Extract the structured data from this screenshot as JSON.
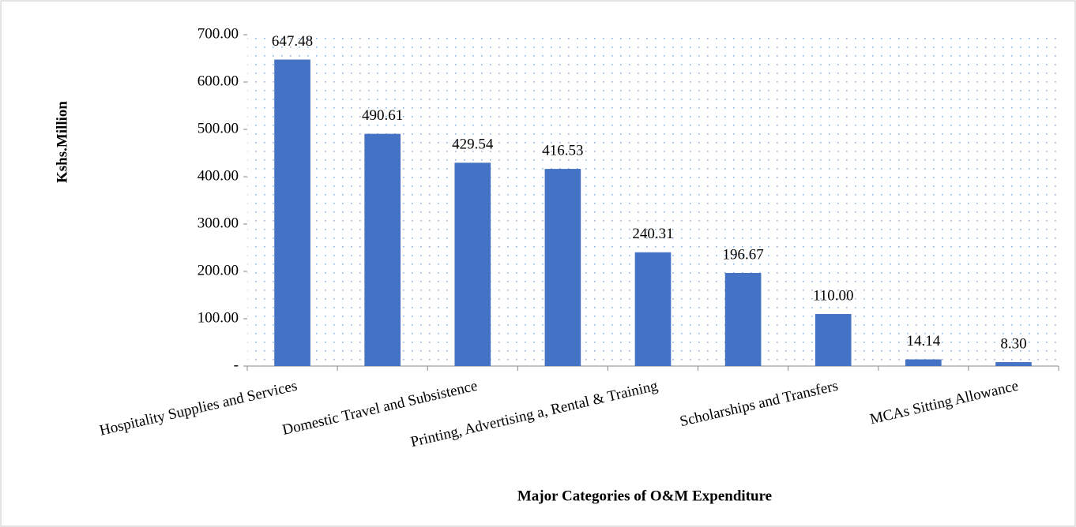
{
  "chart_data": {
    "type": "bar",
    "xlabel": "Major Categories of O&M Expenditure",
    "ylabel": "Kshs.Million",
    "categories": [
      "Hospitality Supplies and Services",
      null,
      "Domestic Travel and Subsistence",
      null,
      "Printing, Advertising a, Rental & Training",
      null,
      "Scholarships and Transfers",
      null,
      "MCAs Sitting Allowance"
    ],
    "values": [
      647.48,
      490.61,
      429.54,
      416.53,
      240.31,
      196.67,
      110,
      14.14,
      8.3
    ],
    "value_labels": [
      "647.48",
      "490.61",
      "429.54",
      "416.53",
      "240.31",
      "196.67",
      "110.00",
      "14.14",
      "8.30"
    ],
    "color": "#4472c4",
    "ylim": [
      0,
      700
    ],
    "yticks": [
      {
        "value": 0,
        "label": "-"
      },
      {
        "value": 100,
        "label": "100.00"
      },
      {
        "value": 200,
        "label": "200.00"
      },
      {
        "value": 300,
        "label": "300.00"
      },
      {
        "value": 400,
        "label": "400.00"
      },
      {
        "value": 500,
        "label": "500.00"
      },
      {
        "value": 600,
        "label": "600.00"
      },
      {
        "value": 700,
        "label": "700.00"
      }
    ]
  }
}
